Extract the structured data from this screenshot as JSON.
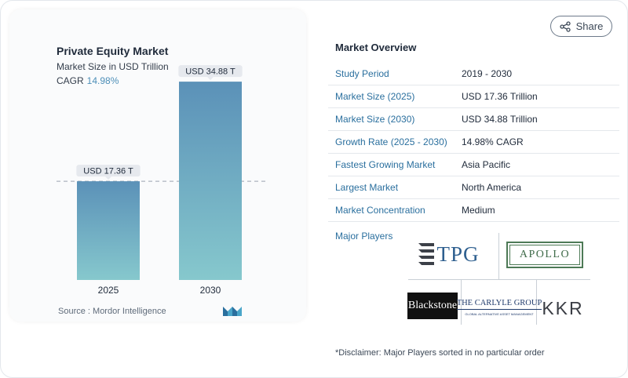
{
  "share": {
    "label": "Share",
    "icon": "share-icon"
  },
  "chart_data": {
    "type": "bar",
    "title": "Private Equity Market",
    "subtitle": "Market Size in USD Trillion",
    "cagr_label": "CAGR",
    "cagr_value": "14.98%",
    "categories": [
      "2025",
      "2030"
    ],
    "values": [
      17.36,
      34.88
    ],
    "data_labels": [
      "USD 17.36 T",
      "USD 34.88 T"
    ],
    "ylim": [
      0,
      40
    ],
    "reference_line": 17.36,
    "colors": {
      "bar_top": "#5b91b8",
      "bar_bottom": "#86c8cd",
      "label_bg": "#e6e9ee"
    },
    "grid": false
  },
  "source": {
    "label": "Source :",
    "name": "Mordor Intelligence"
  },
  "overview": {
    "title": "Market Overview",
    "rows": [
      {
        "key": "Study Period",
        "value": "2019 - 2030"
      },
      {
        "key": "Market Size (2025)",
        "value": "USD 17.36 Trillion"
      },
      {
        "key": "Market Size (2030)",
        "value": "USD 34.88 Trillion"
      },
      {
        "key": "Growth Rate (2025 - 2030)",
        "value": "14.98% CAGR"
      },
      {
        "key": "Fastest Growing Market",
        "value": "Asia Pacific"
      },
      {
        "key": "Largest Market",
        "value": "North America"
      },
      {
        "key": "Market Concentration",
        "value": "Medium"
      }
    ]
  },
  "players": {
    "title": "Major Players",
    "logos": {
      "tpg": "TPG",
      "apollo": "APOLLO",
      "blackstone": "Blackstone",
      "carlyle": "THE CARLYLE GROUP",
      "carlyle_tag": "GLOBAL ALTERNATIVE ASSET MANAGEMENT",
      "kkr": "KKR"
    }
  },
  "disclaimer": "*Disclaimer: Major Players sorted in no particular order"
}
